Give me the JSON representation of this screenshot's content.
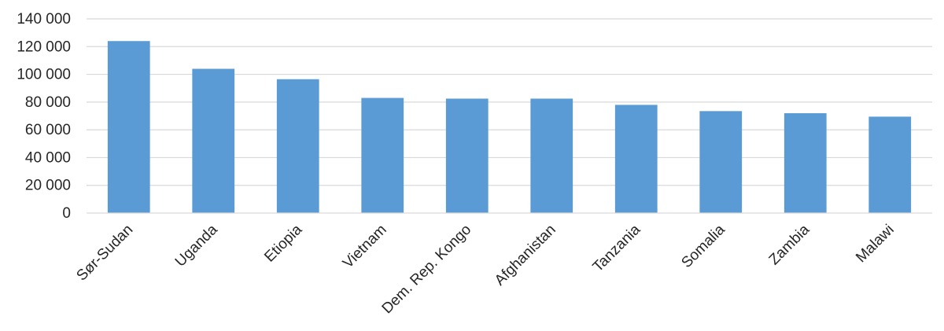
{
  "chart_data": {
    "type": "bar",
    "categories": [
      "Sør-Sudan",
      "Uganda",
      "Etiopia",
      "Vietnam",
      "Dem. Rep. Kongo",
      "Afghanistan",
      "Tanzania",
      "Somalia",
      "Zambia",
      "Malawi"
    ],
    "values": [
      124000,
      104000,
      96500,
      83000,
      82500,
      82500,
      78000,
      73500,
      72000,
      69500
    ],
    "y_ticks": [
      "0",
      "20 000",
      "40 000",
      "60 000",
      "80 000",
      "100 000",
      "120 000",
      "140 000"
    ],
    "ylim": [
      0,
      140000
    ],
    "grid": true,
    "legend": "none",
    "bar_color": "#5b9bd5",
    "title": "",
    "xlabel": "",
    "ylabel": ""
  }
}
